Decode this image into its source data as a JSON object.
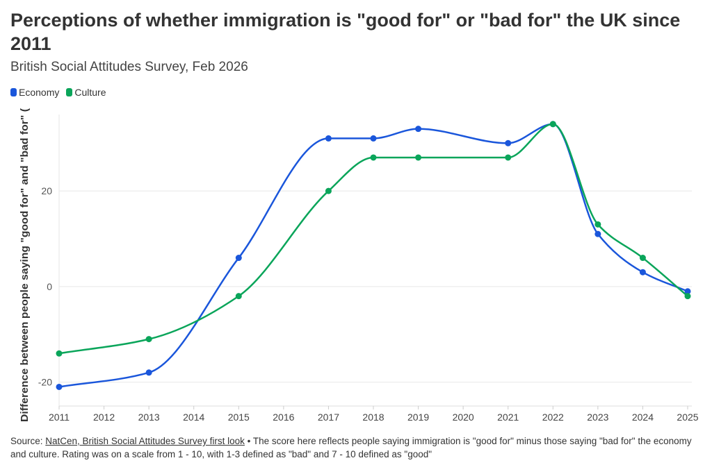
{
  "header": {
    "title": "Perceptions of whether immigration is \"good for\" or \"bad for\" the UK since 2011",
    "subtitle": "British Social Attitudes Survey, Feb 2026"
  },
  "footer": {
    "source_prefix": "Source: ",
    "source_link": "NatCen, British Social Attitudes Survey first look",
    "note": " • The score here reflects people saying immigration is \"good for\" minus those saying \"bad for\" the economy and culture. Rating was on a scale from 1 - 10, with 1-3 defined as \"bad\" and 7 - 10 defined as \"good\""
  },
  "chart_data": {
    "type": "line",
    "title": "Perceptions of whether immigration is \"good for\" or \"bad for\" the UK since 2011",
    "subtitle": "British Social Attitudes Survey, Feb 2026",
    "xlabel": "",
    "ylabel": "Difference between people saying \"good for\" and \"bad for\" (",
    "x_ticks": [
      "2011",
      "2012",
      "2013",
      "2014",
      "2015",
      "2016",
      "2017",
      "2018",
      "2019",
      "2020",
      "2021",
      "2022",
      "2023",
      "2024",
      "2025"
    ],
    "y_ticks": [
      "-20",
      "0",
      "20"
    ],
    "xlim": [
      2011,
      2025
    ],
    "ylim": [
      -25,
      36
    ],
    "grid": "horizontal",
    "legend": "top-left",
    "series": [
      {
        "name": "Economy",
        "color": "#1a56db",
        "points": [
          [
            2011,
            -21
          ],
          [
            2013,
            -18
          ],
          [
            2015,
            6
          ],
          [
            2017,
            31
          ],
          [
            2018,
            31
          ],
          [
            2019,
            33
          ],
          [
            2021,
            30
          ],
          [
            2022,
            34
          ],
          [
            2023,
            11
          ],
          [
            2024,
            3
          ],
          [
            2025,
            -1
          ]
        ]
      },
      {
        "name": "Culture",
        "color": "#0aa55a",
        "points": [
          [
            2011,
            -14
          ],
          [
            2013,
            -11
          ],
          [
            2015,
            -2
          ],
          [
            2017,
            20
          ],
          [
            2018,
            27
          ],
          [
            2019,
            27
          ],
          [
            2021,
            27
          ],
          [
            2022,
            34
          ],
          [
            2023,
            13
          ],
          [
            2024,
            6
          ],
          [
            2025,
            -2
          ]
        ]
      }
    ]
  }
}
